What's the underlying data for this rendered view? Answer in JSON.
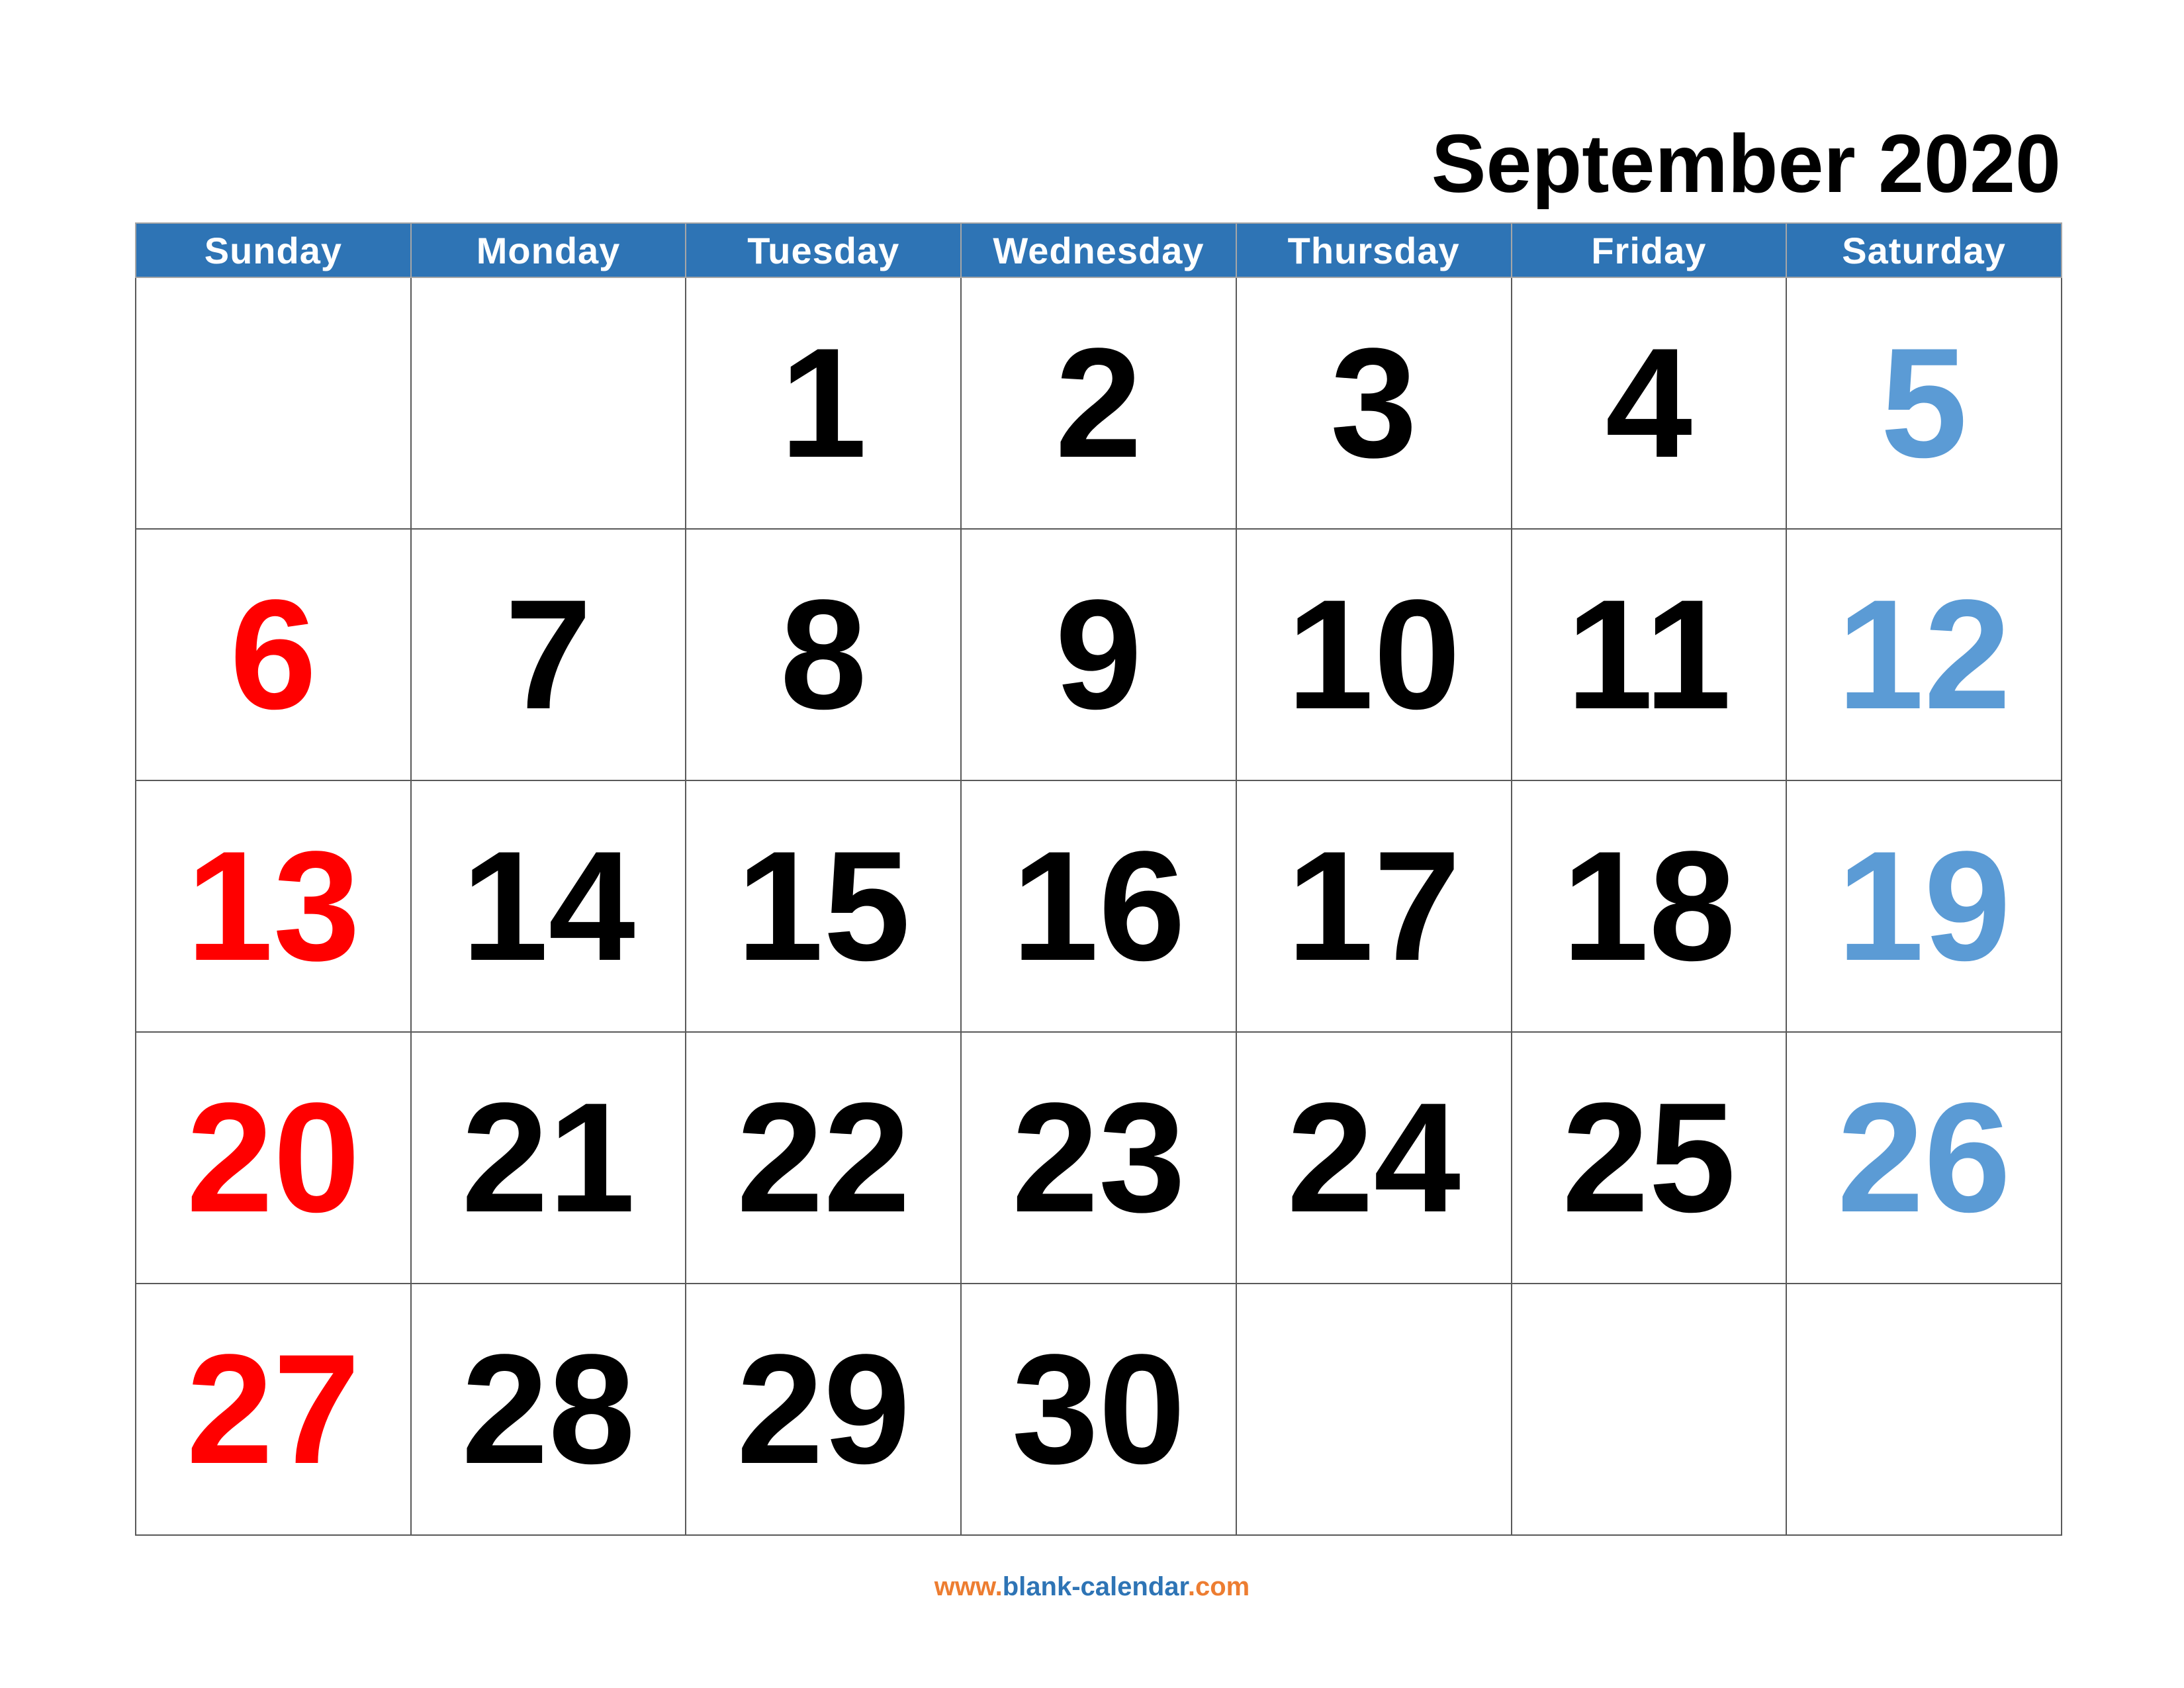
{
  "title": "September 2020",
  "colors": {
    "header_bg": "#2e74b5",
    "header_text": "#ffffff",
    "sunday": "#ff0000",
    "saturday": "#5b9bd5",
    "weekday": "#000000",
    "footer_orange": "#ed7d31",
    "footer_blue": "#2e74b5"
  },
  "weekdays": [
    "Sunday",
    "Monday",
    "Tuesday",
    "Wednesday",
    "Thursday",
    "Friday",
    "Saturday"
  ],
  "weeks": [
    [
      "",
      "",
      "1",
      "2",
      "3",
      "4",
      "5"
    ],
    [
      "6",
      "7",
      "8",
      "9",
      "10",
      "11",
      "12"
    ],
    [
      "13",
      "14",
      "15",
      "16",
      "17",
      "18",
      "19"
    ],
    [
      "20",
      "21",
      "22",
      "23",
      "24",
      "25",
      "26"
    ],
    [
      "27",
      "28",
      "29",
      "30",
      "",
      "",
      ""
    ]
  ],
  "footer": {
    "prefix": "www.",
    "domain": "blank-calendar",
    "suffix": ".com"
  }
}
